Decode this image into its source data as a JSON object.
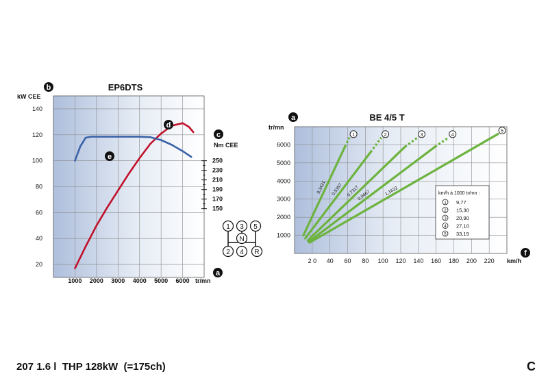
{
  "footer": {
    "caption": "207 1.6 l  THP 128kW  (=175ch)",
    "page_letter": "C"
  },
  "chart_data": [
    {
      "type": "line",
      "title": "EP6DTS",
      "xlabel": "tr/mn",
      "ylabel": "kW CEE",
      "y2label": "Nm CEE",
      "badges": {
        "y_axis": "b",
        "y2_axis": "c",
        "x_axis": "a",
        "power_curve": "d",
        "torque_curve": "e"
      },
      "xlim": [
        0,
        7000
      ],
      "ylim": [
        10,
        150
      ],
      "xticks": [
        "1000",
        "2000",
        "3000",
        "4000",
        "5000",
        "6000"
      ],
      "yticks": [
        "20",
        "40",
        "60",
        "80",
        "100",
        "120",
        "140"
      ],
      "y2ticks": [
        "250",
        "230",
        "210",
        "190",
        "170",
        "150"
      ],
      "grid": true,
      "series": [
        {
          "name": "power",
          "color": "#c0102a",
          "x": [
            1000,
            1500,
            2000,
            2500,
            3000,
            3500,
            4000,
            4500,
            5000,
            5500,
            6000,
            6300,
            6500
          ],
          "y": [
            17,
            34,
            50,
            64,
            77,
            90,
            102,
            113,
            121,
            127,
            129,
            126,
            122
          ]
        },
        {
          "name": "torque",
          "color": "#3a62a8",
          "x": [
            1000,
            1250,
            1500,
            1750,
            2000,
            3000,
            4000,
            4500,
            5000,
            5500,
            6000,
            6400
          ],
          "y": [
            250,
            280,
            298,
            300,
            300,
            300,
            300,
            299,
            293,
            283,
            270,
            258
          ]
        }
      ],
      "gearbox": {
        "top_row": [
          "1",
          "3",
          "5"
        ],
        "neutral": "N",
        "bottom_row": [
          "2",
          "4",
          "R"
        ]
      }
    },
    {
      "type": "line",
      "title": "BE 4/5 T",
      "xlabel": "km/h",
      "ylabel": "tr/mn",
      "badges": {
        "y_axis": "a",
        "x_axis": "f"
      },
      "xlim": [
        0,
        240
      ],
      "ylim": [
        0,
        7000
      ],
      "xticks": [
        "2 0",
        "40",
        "60",
        "80",
        "100",
        "120",
        "140",
        "160",
        "180",
        "200",
        "220"
      ],
      "yticks": [
        "1000",
        "2000",
        "3000",
        "4000",
        "5000",
        "6000"
      ],
      "grid": true,
      "series": [
        {
          "name": "1",
          "ratio_label": "0,3421",
          "x": [
            10,
            57,
            62
          ],
          "y": [
            1000,
            5900,
            6400
          ]
        },
        {
          "name": "2",
          "ratio_label": "0,5357",
          "x": [
            12,
            86,
            98
          ],
          "y": [
            830,
            5600,
            6400
          ]
        },
        {
          "name": "3",
          "ratio_label": "0,7317",
          "x": [
            15,
            125,
            139
          ],
          "y": [
            720,
            5900,
            6400
          ]
        },
        {
          "name": "4",
          "ratio_label": "0,9467",
          "x": [
            16,
            159,
            174
          ],
          "y": [
            640,
            5900,
            6400
          ]
        },
        {
          "name": "5",
          "ratio_label": "1,1622",
          "x": [
            17,
            230
          ],
          "y": [
            600,
            6600
          ]
        }
      ],
      "legend": {
        "title": "km/h à 1000 tr/mn :",
        "rows": [
          {
            "gear": "1",
            "value": "9,77"
          },
          {
            "gear": "2",
            "value": "15,30"
          },
          {
            "gear": "3",
            "value": "20,90"
          },
          {
            "gear": "4",
            "value": "27,10"
          },
          {
            "gear": "5",
            "value": "33,19"
          }
        ]
      },
      "line_color": "#6db33f"
    }
  ]
}
